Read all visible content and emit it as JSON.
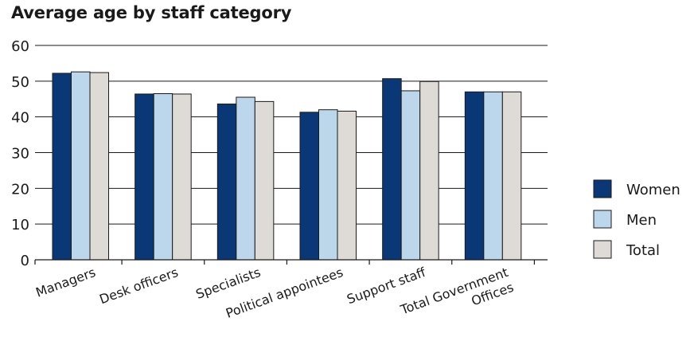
{
  "chart_data": {
    "type": "bar",
    "title": "Average age by staff category",
    "categories": [
      [
        "Managers"
      ],
      [
        "Desk officers"
      ],
      [
        "Specialists"
      ],
      [
        "Political appointees"
      ],
      [
        "Support staff"
      ],
      [
        "Total Government",
        "Offices"
      ]
    ],
    "series": [
      {
        "name": "Women",
        "color": "#0a3877",
        "values": [
          52.2,
          46.4,
          43.6,
          41.3,
          50.7,
          47.0
        ]
      },
      {
        "name": "Men",
        "color": "#bcd6ec",
        "values": [
          52.6,
          46.5,
          45.5,
          42.0,
          47.3,
          47.0
        ]
      },
      {
        "name": "Total",
        "color": "#dedbd7",
        "values": [
          52.4,
          46.4,
          44.3,
          41.6,
          49.9,
          47.0
        ]
      }
    ],
    "ylim": [
      0,
      60
    ],
    "yticks": [
      0,
      10,
      20,
      30,
      40,
      50,
      60
    ],
    "grid": true,
    "legend": "right"
  }
}
